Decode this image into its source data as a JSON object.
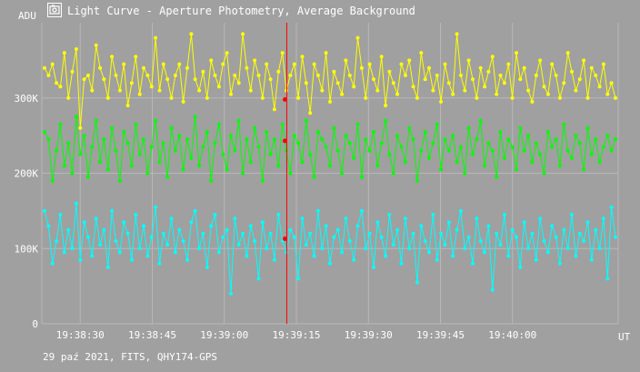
{
  "window": {
    "title": "Light Curve - Aperture Photometry, Average Background",
    "icon": "camera-icon"
  },
  "footer": {
    "text": "29 paź 2021, FITS, QHY174-GPS"
  },
  "colors": {
    "background": "#a0a0a0",
    "grid": "#b8b8b8",
    "series1": "#ffff00",
    "series2": "#00ff00",
    "series3": "#00ffff",
    "cursor": "#ff0000"
  },
  "chart_data": {
    "type": "line",
    "ylabel": "ADU",
    "xlabel": "UT",
    "ylim": [
      0,
      400000
    ],
    "xlim": [
      "19:38:22",
      "19:40:22"
    ],
    "y_ticks": [
      {
        "value": 0,
        "label": "0"
      },
      {
        "value": 100000,
        "label": "100K"
      },
      {
        "value": 200000,
        "label": "200K"
      },
      {
        "value": 300000,
        "label": "300K"
      }
    ],
    "x_ticks": [
      "19:38:30",
      "19:38:45",
      "19:39:00",
      "19:39:15",
      "19:39:30",
      "19:39:45",
      "19:40:00"
    ],
    "grid": true,
    "cursor": {
      "x": "19:39:13",
      "values": [
        298000,
        243000,
        113000
      ]
    },
    "series": [
      {
        "color": "#ffff00",
        "values": [
          340000,
          330000,
          345000,
          320000,
          315000,
          360000,
          300000,
          335000,
          365000,
          260000,
          325000,
          330000,
          310000,
          370000,
          340000,
          325000,
          300000,
          355000,
          330000,
          310000,
          345000,
          290000,
          320000,
          355000,
          305000,
          340000,
          330000,
          315000,
          380000,
          310000,
          345000,
          325000,
          300000,
          330000,
          345000,
          295000,
          340000,
          385000,
          325000,
          310000,
          335000,
          300000,
          350000,
          330000,
          315000,
          345000,
          360000,
          305000,
          330000,
          320000,
          385000,
          340000,
          310000,
          350000,
          330000,
          300000,
          345000,
          325000,
          285000,
          335000,
          360000,
          310000,
          330000,
          345000,
          300000,
          355000,
          320000,
          280000,
          345000,
          330000,
          310000,
          360000,
          295000,
          335000,
          320000,
          305000,
          350000,
          330000,
          315000,
          380000,
          340000,
          300000,
          345000,
          325000,
          310000,
          355000,
          290000,
          335000,
          320000,
          305000,
          345000,
          330000,
          350000,
          315000,
          300000,
          360000,
          325000,
          340000,
          310000,
          330000,
          295000,
          345000,
          320000,
          305000,
          385000,
          330000,
          310000,
          350000,
          325000,
          300000,
          340000,
          315000,
          335000,
          355000,
          305000,
          330000,
          320000,
          345000,
          300000,
          360000,
          325000,
          340000,
          310000,
          295000,
          330000,
          350000,
          315000,
          305000,
          345000,
          330000,
          300000,
          320000,
          360000,
          335000,
          310000,
          325000,
          350000,
          300000,
          340000,
          330000,
          315000,
          345000,
          305000,
          320000,
          300000
        ]
      },
      {
        "color": "#00ff00",
        "values": [
          255000,
          245000,
          190000,
          230000,
          265000,
          210000,
          240000,
          200000,
          275000,
          225000,
          250000,
          195000,
          235000,
          270000,
          215000,
          245000,
          205000,
          260000,
          230000,
          190000,
          255000,
          240000,
          210000,
          265000,
          225000,
          245000,
          200000,
          235000,
          270000,
          215000,
          240000,
          195000,
          260000,
          230000,
          250000,
          205000,
          245000,
          220000,
          275000,
          210000,
          235000,
          255000,
          190000,
          240000,
          265000,
          225000,
          205000,
          250000,
          230000,
          270000,
          200000,
          245000,
          215000,
          260000,
          235000,
          190000,
          255000,
          225000,
          245000,
          210000,
          265000,
          230000,
          200000,
          250000,
          240000,
          215000,
          270000,
          225000,
          195000,
          255000,
          245000,
          235000,
          210000,
          260000,
          230000,
          200000,
          250000,
          240000,
          220000,
          265000,
          195000,
          245000,
          230000,
          255000,
          210000,
          240000,
          270000,
          225000,
          200000,
          250000,
          235000,
          215000,
          260000,
          245000,
          190000,
          230000,
          255000,
          220000,
          240000,
          265000,
          205000,
          245000,
          230000,
          250000,
          215000,
          235000,
          200000,
          260000,
          225000,
          245000,
          270000,
          210000,
          240000,
          230000,
          195000,
          255000,
          220000,
          245000,
          235000,
          205000,
          260000,
          230000,
          250000,
          215000,
          240000,
          225000,
          200000,
          255000,
          235000,
          245000,
          210000,
          265000,
          230000,
          220000,
          250000,
          240000,
          205000,
          260000,
          225000,
          245000,
          215000,
          235000,
          250000,
          230000,
          245000
        ]
      },
      {
        "color": "#00ffff",
        "values": [
          150000,
          130000,
          80000,
          110000,
          145000,
          95000,
          125000,
          100000,
          160000,
          85000,
          135000,
          115000,
          90000,
          140000,
          105000,
          125000,
          75000,
          150000,
          110000,
          95000,
          135000,
          120000,
          85000,
          145000,
          100000,
          130000,
          90000,
          115000,
          155000,
          80000,
          120000,
          105000,
          140000,
          95000,
          125000,
          110000,
          85000,
          135000,
          150000,
          100000,
          120000,
          75000,
          130000,
          145000,
          95000,
          115000,
          125000,
          40000,
          140000,
          105000,
          120000,
          90000,
          130000,
          110000,
          60000,
          135000,
          100000,
          120000,
          85000,
          145000,
          110000,
          95000,
          125000,
          115000,
          60000,
          140000,
          105000,
          120000,
          90000,
          150000,
          100000,
          130000,
          80000,
          115000,
          125000,
          95000,
          140000,
          110000,
          85000,
          130000,
          150000,
          100000,
          120000,
          75000,
          135000,
          115000,
          90000,
          145000,
          105000,
          125000,
          80000,
          140000,
          100000,
          120000,
          55000,
          130000,
          110000,
          95000,
          145000,
          85000,
          120000,
          105000,
          135000,
          90000,
          125000,
          150000,
          100000,
          115000,
          80000,
          140000,
          110000,
          95000,
          130000,
          45000,
          120000,
          105000,
          145000,
          90000,
          125000,
          115000,
          75000,
          135000,
          100000,
          120000,
          85000,
          140000,
          110000,
          95000,
          130000,
          115000,
          80000,
          125000,
          100000,
          145000,
          90000,
          120000,
          110000,
          135000,
          85000,
          125000,
          100000,
          140000,
          60000,
          155000,
          115000
        ]
      }
    ]
  }
}
